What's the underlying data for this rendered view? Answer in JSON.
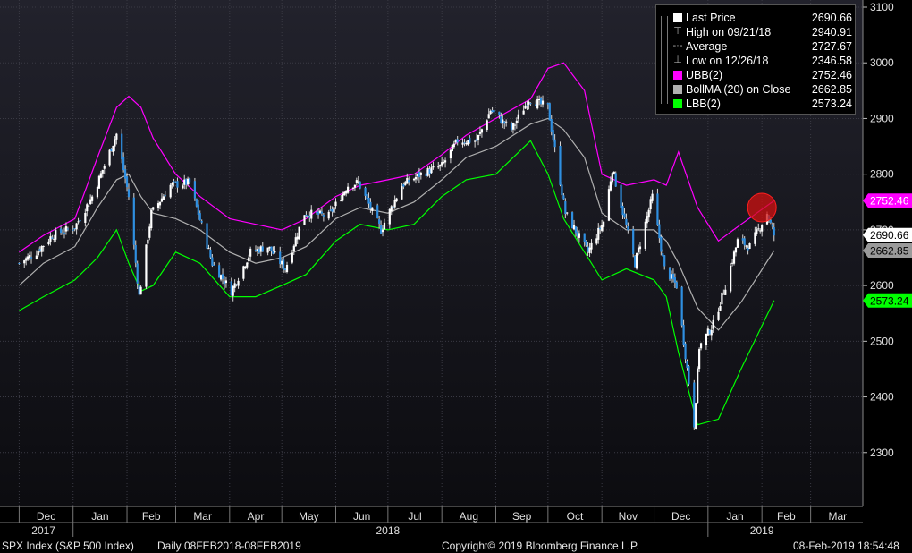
{
  "chart_data": {
    "type": "line",
    "title": "SPX Index (S&P 500 Index)",
    "frequency": "Daily",
    "range_label": "08FEB2018-08FEB2019",
    "ylim": [
      2200,
      3100
    ],
    "y_ticks": [
      2300,
      2400,
      2500,
      2600,
      2700,
      2800,
      2900,
      3000,
      3100
    ],
    "month_labels": [
      "Dec",
      "Jan",
      "Feb",
      "Mar",
      "Apr",
      "May",
      "Jun",
      "Jul",
      "Aug",
      "Sep",
      "Oct",
      "Nov",
      "Dec",
      "Jan",
      "Feb",
      "Mar"
    ],
    "year_labels": [
      "2017",
      "2018",
      "2019"
    ],
    "grid": true,
    "legend_position": "top-right",
    "series": [
      {
        "name": "Last Price",
        "color": "#ffffff",
        "kind": "candlestick",
        "x": [
          "2017-12-01",
          "2017-12-11",
          "2017-12-20",
          "2018-01-02",
          "2018-01-12",
          "2018-01-26",
          "2018-02-02",
          "2018-02-08",
          "2018-02-15",
          "2018-02-26",
          "2018-03-09",
          "2018-03-22",
          "2018-04-02",
          "2018-04-13",
          "2018-04-23",
          "2018-05-03",
          "2018-05-14",
          "2018-05-28",
          "2018-06-08",
          "2018-06-14",
          "2018-06-27",
          "2018-07-09",
          "2018-07-20",
          "2018-08-01",
          "2018-08-10",
          "2018-08-21",
          "2018-08-29",
          "2018-09-10",
          "2018-09-20",
          "2018-10-01",
          "2018-10-11",
          "2018-10-24",
          "2018-11-02",
          "2018-11-07",
          "2018-11-20",
          "2018-11-30",
          "2018-12-07",
          "2018-12-14",
          "2018-12-24",
          "2018-12-27",
          "2019-01-04",
          "2019-01-11",
          "2019-01-18",
          "2019-01-25",
          "2019-02-04",
          "2019-02-08"
        ],
        "values": [
          2640,
          2660,
          2690,
          2705,
          2760,
          2872,
          2760,
          2581,
          2730,
          2780,
          2785,
          2640,
          2590,
          2660,
          2670,
          2630,
          2730,
          2725,
          2780,
          2785,
          2700,
          2780,
          2800,
          2815,
          2860,
          2860,
          2915,
          2880,
          2935,
          2920,
          2730,
          2660,
          2715,
          2810,
          2640,
          2760,
          2630,
          2600,
          2351,
          2490,
          2530,
          2600,
          2680,
          2670,
          2730,
          2690.66
        ]
      },
      {
        "name": "UBB(2)",
        "color": "#ff00ff",
        "kind": "line",
        "x": [
          "2017-12-01",
          "2017-12-15",
          "2018-01-02",
          "2018-01-15",
          "2018-01-26",
          "2018-02-02",
          "2018-02-09",
          "2018-02-16",
          "2018-03-01",
          "2018-03-15",
          "2018-04-01",
          "2018-04-16",
          "2018-05-01",
          "2018-05-15",
          "2018-06-01",
          "2018-06-15",
          "2018-07-01",
          "2018-07-16",
          "2018-08-01",
          "2018-08-15",
          "2018-09-01",
          "2018-09-21",
          "2018-10-01",
          "2018-10-10",
          "2018-10-22",
          "2018-11-01",
          "2018-11-15",
          "2018-12-01",
          "2018-12-08",
          "2018-12-15",
          "2018-12-26",
          "2019-01-07",
          "2019-01-20",
          "2019-02-08"
        ],
        "values": [
          2660,
          2690,
          2720,
          2830,
          2920,
          2940,
          2920,
          2865,
          2800,
          2760,
          2720,
          2710,
          2700,
          2720,
          2760,
          2780,
          2790,
          2800,
          2835,
          2870,
          2900,
          2935,
          2990,
          3000,
          2950,
          2800,
          2780,
          2790,
          2780,
          2840,
          2740,
          2680,
          2710,
          2752.46
        ]
      },
      {
        "name": "BollMA (20)",
        "qualifier": "on Close",
        "color": "#b0b0b0",
        "kind": "line",
        "x": [
          "2017-12-01",
          "2017-12-15",
          "2018-01-02",
          "2018-01-15",
          "2018-01-26",
          "2018-02-02",
          "2018-02-09",
          "2018-02-16",
          "2018-03-01",
          "2018-03-15",
          "2018-04-01",
          "2018-04-16",
          "2018-05-01",
          "2018-05-15",
          "2018-06-01",
          "2018-06-15",
          "2018-07-01",
          "2018-07-16",
          "2018-08-01",
          "2018-08-15",
          "2018-09-01",
          "2018-09-21",
          "2018-10-01",
          "2018-10-10",
          "2018-10-22",
          "2018-11-01",
          "2018-11-15",
          "2018-12-01",
          "2018-12-08",
          "2018-12-15",
          "2018-12-26",
          "2019-01-07",
          "2019-01-20",
          "2019-02-08"
        ],
        "values": [
          2600,
          2640,
          2670,
          2740,
          2790,
          2800,
          2760,
          2730,
          2720,
          2700,
          2660,
          2640,
          2650,
          2670,
          2720,
          2740,
          2730,
          2750,
          2790,
          2830,
          2850,
          2890,
          2900,
          2880,
          2830,
          2730,
          2700,
          2700,
          2680,
          2640,
          2560,
          2520,
          2570,
          2662.85
        ]
      },
      {
        "name": "LBB(2)",
        "color": "#00ff00",
        "kind": "line",
        "x": [
          "2017-12-01",
          "2017-12-15",
          "2018-01-02",
          "2018-01-15",
          "2018-01-26",
          "2018-02-02",
          "2018-02-09",
          "2018-02-16",
          "2018-03-01",
          "2018-03-15",
          "2018-04-01",
          "2018-04-16",
          "2018-05-01",
          "2018-05-15",
          "2018-06-01",
          "2018-06-15",
          "2018-07-01",
          "2018-07-16",
          "2018-08-01",
          "2018-08-15",
          "2018-09-01",
          "2018-09-21",
          "2018-10-01",
          "2018-10-10",
          "2018-10-22",
          "2018-11-01",
          "2018-11-15",
          "2018-12-01",
          "2018-12-08",
          "2018-12-15",
          "2018-12-26",
          "2019-01-07",
          "2019-01-20",
          "2019-02-08"
        ],
        "values": [
          2555,
          2580,
          2610,
          2650,
          2700,
          2640,
          2590,
          2600,
          2660,
          2640,
          2580,
          2580,
          2600,
          2620,
          2680,
          2710,
          2700,
          2710,
          2760,
          2790,
          2800,
          2860,
          2800,
          2720,
          2660,
          2610,
          2630,
          2610,
          2580,
          2480,
          2350,
          2360,
          2450,
          2573.24
        ]
      }
    ],
    "stats": [
      {
        "name": "High on 09/21/18",
        "value": "2940.91"
      },
      {
        "name": "Average",
        "value": "2727.67"
      },
      {
        "name": "Low on 12/26/18",
        "value": "2346.58"
      }
    ],
    "right_axis_tags": [
      {
        "label": "2752.46",
        "value": 2752.46,
        "bg": "#ff00ff",
        "fg": "#ffffff"
      },
      {
        "label": "2690.66",
        "value": 2690.66,
        "bg": "#ffffff",
        "fg": "#000000"
      },
      {
        "label": "2662.85",
        "value": 2662.85,
        "bg": "#9a9a9a",
        "fg": "#000000"
      },
      {
        "label": "2573.24",
        "value": 2573.24,
        "bg": "#00ff00",
        "fg": "#000000"
      }
    ],
    "highlight": {
      "x": "2019-02-01",
      "value": 2740,
      "color": "#d01010"
    }
  },
  "legend": {
    "rows": [
      {
        "name": "Last Price",
        "value": "2690.66",
        "swatch": "#ffffff",
        "marker": ""
      },
      {
        "name": "High on 09/21/18",
        "value": "2940.91",
        "swatch": "",
        "marker": "⊤"
      },
      {
        "name": "Average",
        "value": "2727.67",
        "swatch": "",
        "marker": "-·-"
      },
      {
        "name": "Low on 12/26/18",
        "value": "2346.58",
        "swatch": "",
        "marker": "⊥"
      },
      {
        "name": "UBB(2)",
        "value": "2752.46",
        "swatch": "#ff00ff",
        "marker": ""
      },
      {
        "name": "BollMA (20)  on Close",
        "value": "2662.85",
        "swatch": "#b0b0b0",
        "marker": ""
      },
      {
        "name": "LBB(2)",
        "value": "2573.24",
        "swatch": "#00ff00",
        "marker": ""
      }
    ]
  },
  "footer": {
    "ticker": "SPX Index (S&P 500 Index)",
    "period": "Daily 08FEB2018-08FEB2019",
    "copyright": "Copyright© 2019 Bloomberg Finance L.P.",
    "timestamp": "08-Feb-2019 18:54:48"
  },
  "colors": {
    "background": "#000000",
    "plot_bg_top": "#1c1c24",
    "grid": "#3a3a44",
    "up": "#ffffff",
    "down": "#2f8fe0"
  }
}
